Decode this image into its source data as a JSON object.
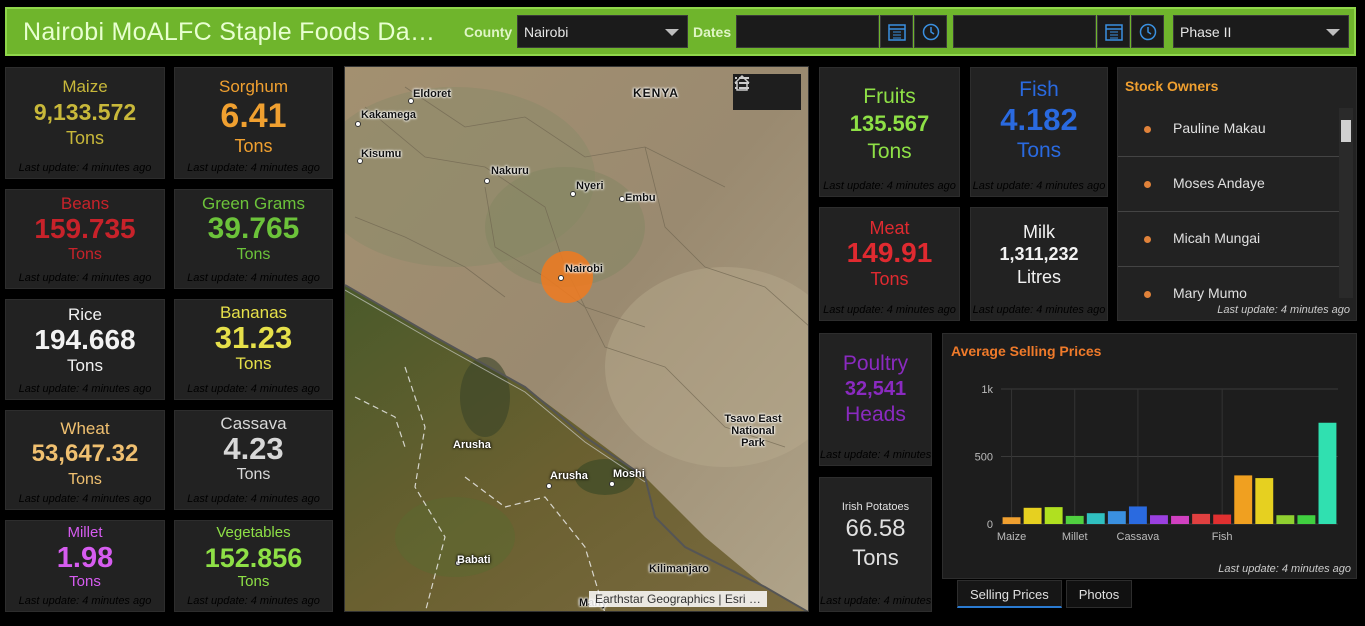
{
  "header": {
    "title": "Nairobi MoALFC Staple Foods Da…",
    "county_label": "County",
    "county_value": "Nairobi",
    "dates_label": "Dates",
    "phase_value": "Phase II",
    "calendar_icon": "calendar-icon",
    "clock_icon": "clock-icon"
  },
  "update_text": "Last update: 4 minutes ago",
  "tiles": [
    {
      "name": "Maize",
      "value": "9,133.572",
      "unit": "Tons",
      "color": "#c8b83a"
    },
    {
      "name": "Sorghum",
      "value": "6.41",
      "unit": "Tons",
      "color": "#f0a030"
    },
    {
      "name": "Beans",
      "value": "159.735",
      "unit": "Tons",
      "color": "#c8222a"
    },
    {
      "name": "Green Grams",
      "value": "39.765",
      "unit": "Tons",
      "color": "#6cc33a"
    },
    {
      "name": "Rice",
      "value": "194.668",
      "unit": "Tons",
      "color": "#f2f2f2"
    },
    {
      "name": "Bananas",
      "value": "31.23",
      "unit": "Tons",
      "color": "#e6e04a"
    },
    {
      "name": "Wheat",
      "value": "53,647.32",
      "unit": "Tons",
      "color": "#f0c070"
    },
    {
      "name": "Cassava",
      "value": "4.23",
      "unit": "Tons",
      "color": "#d8d8d8"
    },
    {
      "name": "Millet",
      "value": "1.98",
      "unit": "Tons",
      "color": "#d65cf0"
    },
    {
      "name": "Vegetables",
      "value": "152.856",
      "unit": "Tons",
      "color": "#8ee046"
    },
    {
      "name": "Fruits",
      "value": "135.567",
      "unit": "Tons",
      "color": "#8ee046"
    },
    {
      "name": "Fish",
      "value": "4.182",
      "unit": "Tons",
      "color": "#2a6ae0"
    },
    {
      "name": "Meat",
      "value": "149.91",
      "unit": "Tons",
      "color": "#e02a30"
    },
    {
      "name": "Milk",
      "value": "1,311,232",
      "unit": "Litres",
      "color": "#f2f2f2"
    },
    {
      "name": "Poultry",
      "value": "32,541",
      "unit": "Heads",
      "color": "#8a2ac0"
    },
    {
      "name": "Irish Potatoes",
      "value": "66.58",
      "unit": "Tons",
      "color": "#e0e0e0"
    }
  ],
  "map": {
    "labels": [
      "KENYA",
      "Eldoret",
      "Kakamega",
      "Kisumu",
      "Nakuru",
      "Nyeri",
      "Embu",
      "Nairobi",
      "Tsavo East National Park",
      "Arusha",
      "Arusha",
      "Moshi",
      "Babati",
      "Kilimanjaro",
      "Many"
    ],
    "attribution": "Earthstar Geographics | Esri …",
    "home_icon": "home-icon",
    "layers_icon": "layer-list-icon"
  },
  "stock": {
    "title": "Stock Owners",
    "owners": [
      "Pauline Makau",
      "Moses Andaye",
      "Micah Mungai",
      "Mary Mumo"
    ]
  },
  "chart_data": {
    "type": "bar",
    "title": "Average Selling Prices",
    "xlabel": "",
    "ylabel": "",
    "ylim": [
      0,
      1000
    ],
    "yticks": [
      "0",
      "500",
      "1k"
    ],
    "categories": [
      "Maize",
      "",
      "",
      "Millet",
      "",
      "",
      "Cassava",
      "",
      "",
      "",
      "Fish",
      "",
      "",
      "",
      "",
      ""
    ],
    "values": [
      50,
      120,
      125,
      60,
      80,
      95,
      130,
      65,
      60,
      75,
      70,
      360,
      340,
      65,
      65,
      750
    ],
    "colors": [
      "#f0a030",
      "#e6d020",
      "#b0e020",
      "#50d040",
      "#30c0c0",
      "#3a90e0",
      "#2a6ae0",
      "#9a40e0",
      "#d040c0",
      "#e04040",
      "#e03030",
      "#f0a020",
      "#e6d020",
      "#90d030",
      "#40d040",
      "#30e0b0"
    ],
    "grid": true,
    "legend": "none"
  },
  "tabs": [
    "Selling Prices",
    "Photos"
  ]
}
